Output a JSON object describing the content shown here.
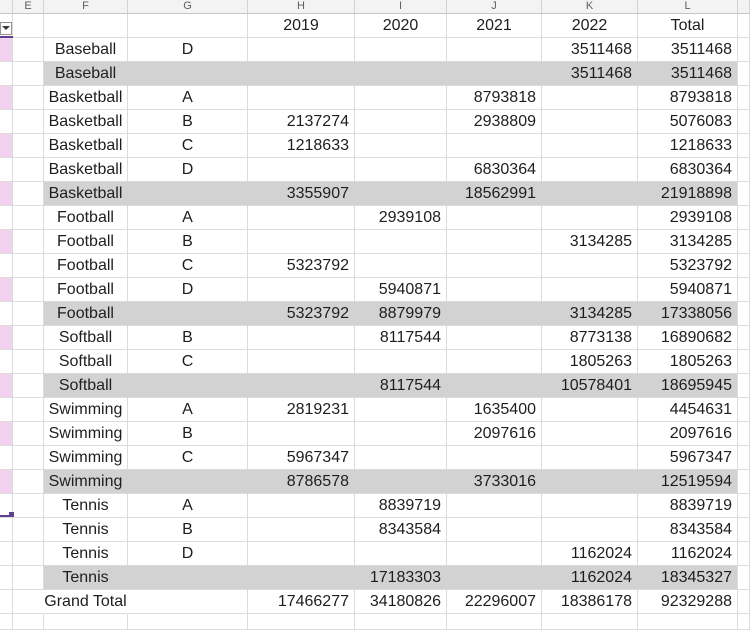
{
  "sheet": {
    "column_letters": [
      "E",
      "F",
      "G",
      "H",
      "I",
      "J",
      "K",
      "L"
    ],
    "year_headers": [
      "2019",
      "2020",
      "2021",
      "2022",
      "Total"
    ],
    "rows": [
      {
        "f": "Baseball",
        "g": "D",
        "h": "",
        "i": "",
        "j": "",
        "k": "3511468",
        "l": "3511468",
        "kind": "data",
        "pink": true
      },
      {
        "f": "Baseball",
        "g": "",
        "h": "",
        "i": "",
        "j": "",
        "k": "3511468",
        "l": "3511468",
        "kind": "subtotal",
        "pink": false
      },
      {
        "f": "Basketball",
        "g": "A",
        "h": "",
        "i": "",
        "j": "8793818",
        "k": "",
        "l": "8793818",
        "kind": "data",
        "pink": true
      },
      {
        "f": "Basketball",
        "g": "B",
        "h": "2137274",
        "i": "",
        "j": "2938809",
        "k": "",
        "l": "5076083",
        "kind": "data",
        "pink": false
      },
      {
        "f": "Basketball",
        "g": "C",
        "h": "1218633",
        "i": "",
        "j": "",
        "k": "",
        "l": "1218633",
        "kind": "data",
        "pink": true
      },
      {
        "f": "Basketball",
        "g": "D",
        "h": "",
        "i": "",
        "j": "6830364",
        "k": "",
        "l": "6830364",
        "kind": "data",
        "pink": false
      },
      {
        "f": "Basketball",
        "g": "",
        "h": "3355907",
        "i": "",
        "j": "18562991",
        "k": "",
        "l": "21918898",
        "kind": "subtotal",
        "pink": true
      },
      {
        "f": "Football",
        "g": "A",
        "h": "",
        "i": "2939108",
        "j": "",
        "k": "",
        "l": "2939108",
        "kind": "data",
        "pink": false
      },
      {
        "f": "Football",
        "g": "B",
        "h": "",
        "i": "",
        "j": "",
        "k": "3134285",
        "l": "3134285",
        "kind": "data",
        "pink": true
      },
      {
        "f": "Football",
        "g": "C",
        "h": "5323792",
        "i": "",
        "j": "",
        "k": "",
        "l": "5323792",
        "kind": "data",
        "pink": false
      },
      {
        "f": "Football",
        "g": "D",
        "h": "",
        "i": "5940871",
        "j": "",
        "k": "",
        "l": "5940871",
        "kind": "data",
        "pink": true
      },
      {
        "f": "Football",
        "g": "",
        "h": "5323792",
        "i": "8879979",
        "j": "",
        "k": "3134285",
        "l": "17338056",
        "kind": "subtotal",
        "pink": false
      },
      {
        "f": "Softball",
        "g": "B",
        "h": "",
        "i": "8117544",
        "j": "",
        "k": "8773138",
        "l": "16890682",
        "kind": "data",
        "pink": true
      },
      {
        "f": "Softball",
        "g": "C",
        "h": "",
        "i": "",
        "j": "",
        "k": "1805263",
        "l": "1805263",
        "kind": "data",
        "pink": false
      },
      {
        "f": "Softball",
        "g": "",
        "h": "",
        "i": "8117544",
        "j": "",
        "k": "10578401",
        "l": "18695945",
        "kind": "subtotal",
        "pink": true
      },
      {
        "f": "Swimming",
        "g": "A",
        "h": "2819231",
        "i": "",
        "j": "1635400",
        "k": "",
        "l": "4454631",
        "kind": "data",
        "pink": false
      },
      {
        "f": "Swimming",
        "g": "B",
        "h": "",
        "i": "",
        "j": "2097616",
        "k": "",
        "l": "2097616",
        "kind": "data",
        "pink": true
      },
      {
        "f": "Swimming",
        "g": "C",
        "h": "5967347",
        "i": "",
        "j": "",
        "k": "",
        "l": "5967347",
        "kind": "data",
        "pink": false
      },
      {
        "f": "Swimming",
        "g": "",
        "h": "8786578",
        "i": "",
        "j": "3733016",
        "k": "",
        "l": "12519594",
        "kind": "subtotal",
        "pink": true
      },
      {
        "f": "Tennis",
        "g": "A",
        "h": "",
        "i": "8839719",
        "j": "",
        "k": "",
        "l": "8839719",
        "kind": "data",
        "pink": false
      },
      {
        "f": "Tennis",
        "g": "B",
        "h": "",
        "i": "8343584",
        "j": "",
        "k": "",
        "l": "8343584",
        "kind": "data",
        "pink": false
      },
      {
        "f": "Tennis",
        "g": "D",
        "h": "",
        "i": "",
        "j": "",
        "k": "1162024",
        "l": "1162024",
        "kind": "data",
        "pink": false
      },
      {
        "f": "Tennis",
        "g": "",
        "h": "",
        "i": "17183303",
        "j": "",
        "k": "1162024",
        "l": "18345327",
        "kind": "subtotal",
        "pink": false
      },
      {
        "f": "Grand Total",
        "g": "",
        "h": "17466277",
        "i": "34180826",
        "j": "22296007",
        "k": "18386178",
        "l": "92329288",
        "kind": "grand",
        "pink": false
      }
    ],
    "colors": {
      "subtotal_bg": "#d2d2d2",
      "band_pink": "#f0d2ee",
      "gridline": "#dcdcdc",
      "header_bg": "#f3f3f3",
      "header_text": "#5f5f5f",
      "cell_text": "#1e1e1e",
      "selection_purple": "#5e4191"
    }
  }
}
